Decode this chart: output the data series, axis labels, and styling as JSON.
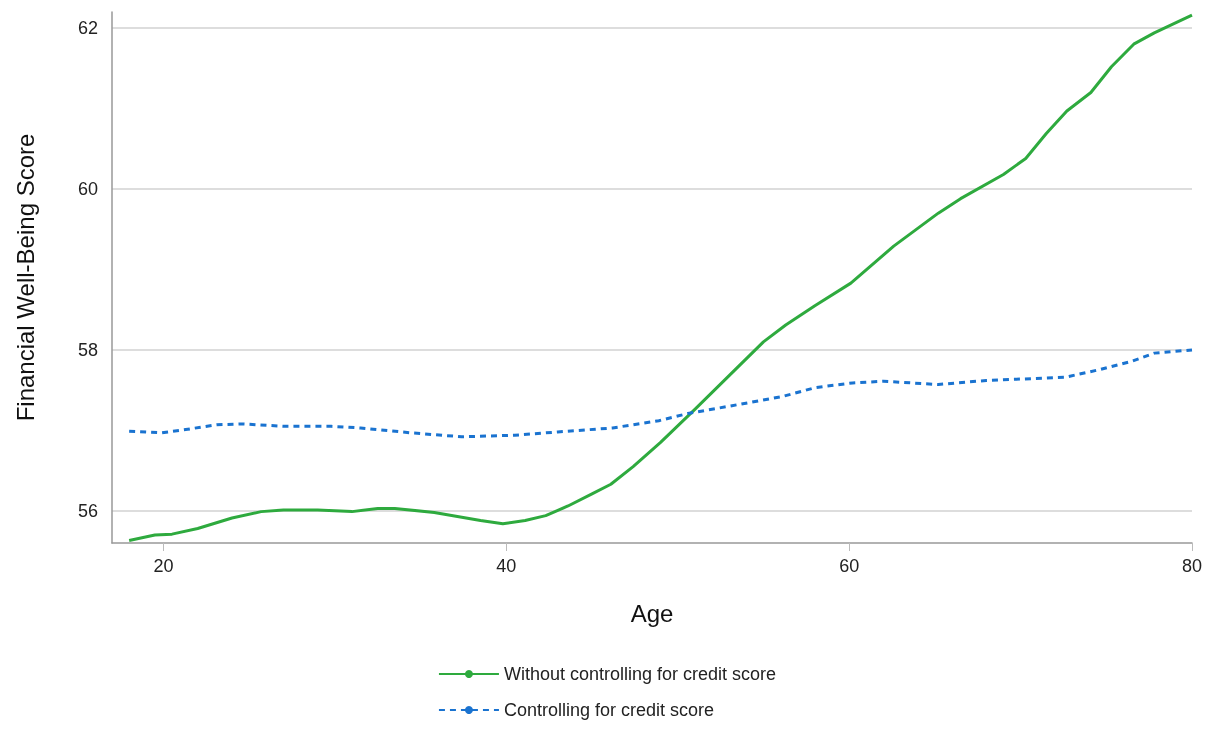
{
  "chart_data": {
    "type": "line",
    "xlabel": "Age",
    "ylabel": "Financial Well-Being Score",
    "xlim": [
      17,
      80
    ],
    "xticks": [
      20,
      40,
      60,
      80
    ],
    "ylim": [
      55.6,
      62.2
    ],
    "yticks": [
      56,
      58,
      60,
      62
    ],
    "grid": "y",
    "legend": "bottom",
    "marker": "none",
    "series": [
      {
        "name": "Without controlling for credit score",
        "color": "#2eaa3e",
        "line_style": "solid",
        "x": [
          18,
          19.5,
          20.5,
          22,
          24,
          25.7,
          27,
          29,
          31,
          32.5,
          33.5,
          35.8,
          38.5,
          39.8,
          41.1,
          42.3,
          43.6,
          45,
          46.1,
          47.4,
          49,
          51,
          53,
          55,
          56.3,
          58,
          60.1,
          62.6,
          65.2,
          66.5,
          69,
          70.3,
          71.5,
          72.7,
          74.1,
          75.3,
          76.6,
          77.8,
          79.1,
          80
        ],
        "values": [
          55.63,
          55.7,
          55.71,
          55.78,
          55.91,
          55.99,
          56.01,
          56.01,
          55.99,
          56.03,
          56.03,
          55.98,
          55.88,
          55.84,
          55.88,
          55.94,
          56.06,
          56.21,
          56.33,
          56.55,
          56.85,
          57.26,
          57.68,
          58.1,
          58.31,
          58.55,
          58.83,
          59.29,
          59.7,
          59.88,
          60.18,
          60.38,
          60.69,
          60.97,
          61.2,
          61.52,
          61.8,
          61.94,
          62.07,
          62.16
        ]
      },
      {
        "name": "Controlling for credit score",
        "color": "#1a73d0",
        "line_style": "dashed",
        "x": [
          18,
          19.9,
          21.3,
          23.1,
          24.6,
          27.1,
          29.8,
          31.5,
          34.4,
          37.4,
          40.5,
          43,
          46.2,
          48.9,
          50.6,
          53,
          56.1,
          58,
          60.2,
          62,
          65.2,
          68,
          72.6,
          74.5,
          76.5,
          77.8,
          80
        ],
        "values": [
          56.99,
          56.97,
          57.01,
          57.07,
          57.08,
          57.05,
          57.05,
          57.03,
          56.97,
          56.92,
          56.94,
          56.98,
          57.03,
          57.12,
          57.21,
          57.3,
          57.42,
          57.53,
          57.59,
          57.61,
          57.57,
          57.62,
          57.66,
          57.75,
          57.86,
          57.96,
          58.0
        ]
      }
    ]
  }
}
